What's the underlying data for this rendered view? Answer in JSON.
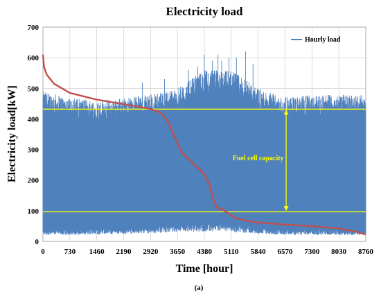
{
  "chart_data": {
    "type": "line",
    "title": "Electricity load",
    "xlabel": "Time [hour]",
    "ylabel": "Electricity load[kW]",
    "panel_label": "(a)",
    "xlim": [
      0,
      8760
    ],
    "ylim": [
      0,
      700
    ],
    "x_ticks": [
      0,
      730,
      1460,
      2190,
      2920,
      3650,
      4380,
      5110,
      5840,
      6570,
      7300,
      8030,
      8760
    ],
    "y_ticks": [
      0,
      100,
      200,
      300,
      400,
      500,
      600,
      700
    ],
    "grid": true,
    "legend": {
      "position": "top-right",
      "entries": [
        "Hourly load"
      ]
    },
    "series": [
      {
        "name": "Hourly load",
        "kind": "hourly-band",
        "color": "#4f81bd",
        "envelope": {
          "x": [
            0,
            730,
            1460,
            2190,
            2920,
            3650,
            4380,
            5110,
            5840,
            6570,
            7300,
            8030,
            8760
          ],
          "upper": [
            490,
            470,
            460,
            470,
            480,
            500,
            560,
            560,
            500,
            470,
            480,
            480,
            480
          ],
          "lower": [
            30,
            30,
            32,
            35,
            38,
            45,
            45,
            45,
            35,
            30,
            30,
            30,
            28
          ]
        },
        "peaks": [
          {
            "x": 4380,
            "y": 610
          },
          {
            "x": 4600,
            "y": 590
          },
          {
            "x": 4750,
            "y": 610
          },
          {
            "x": 4850,
            "y": 590
          },
          {
            "x": 5050,
            "y": 600
          },
          {
            "x": 5250,
            "y": 600
          },
          {
            "x": 5500,
            "y": 620
          },
          {
            "x": 5700,
            "y": 580
          },
          {
            "x": 3950,
            "y": 560
          },
          {
            "x": 4200,
            "y": 570
          },
          {
            "x": 2700,
            "y": 520
          },
          {
            "x": 3300,
            "y": 530
          }
        ]
      },
      {
        "name": "",
        "kind": "duration-curve",
        "color": "#c0504d",
        "x": [
          0,
          30,
          100,
          300,
          730,
          1460,
          2190,
          2920,
          3200,
          3400,
          3650,
          3800,
          4000,
          4200,
          4380,
          4500,
          4600,
          4700,
          4800,
          5000,
          5200,
          5500,
          5840,
          6570,
          7300,
          8030,
          8500,
          8760
        ],
        "y": [
          610,
          570,
          545,
          515,
          485,
          463,
          448,
          433,
          420,
          390,
          320,
          285,
          265,
          240,
          220,
          190,
          150,
          112,
          108,
          95,
          78,
          68,
          62,
          55,
          50,
          42,
          32,
          22
        ]
      },
      {
        "name": "",
        "kind": "hline",
        "color": "#ffff00",
        "y": 432
      },
      {
        "name": "",
        "kind": "hline",
        "color": "#ffff00",
        "y": 97
      }
    ],
    "annotations": [
      {
        "text": "Fuel cell capacity",
        "x": 5840,
        "y": 265,
        "color": "#ffff00",
        "arrow": {
          "x": 6600,
          "from": 432,
          "to": 97
        }
      }
    ]
  }
}
